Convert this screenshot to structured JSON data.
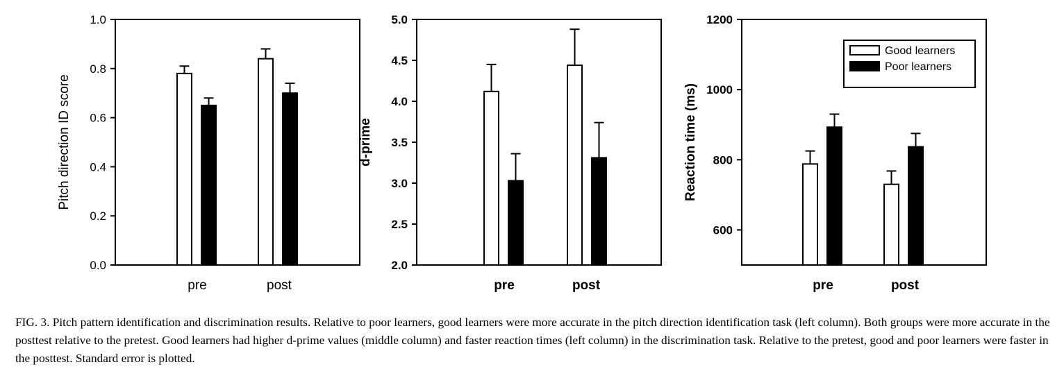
{
  "series_names": [
    "Good learners",
    "Poor learners"
  ],
  "chart_data": [
    {
      "type": "bar",
      "categories": [
        "pre",
        "post"
      ],
      "ylabel": "Pitch direction ID score",
      "ylim": [
        0.0,
        1.0
      ],
      "yticks": [
        "0.0",
        "0.2",
        "0.4",
        "0.6",
        "0.8",
        "1.0"
      ],
      "series": [
        {
          "name": "Good learners",
          "values": [
            0.78,
            0.84
          ],
          "errors": [
            0.03,
            0.04
          ]
        },
        {
          "name": "Poor learners",
          "values": [
            0.65,
            0.7
          ],
          "errors": [
            0.03,
            0.04
          ]
        }
      ]
    },
    {
      "type": "bar",
      "categories": [
        "pre",
        "post"
      ],
      "ylabel": "d-prime",
      "ylim": [
        2.0,
        5.0
      ],
      "yticks": [
        "2.0",
        "2.5",
        "3.0",
        "3.5",
        "4.0",
        "4.5",
        "5.0"
      ],
      "series": [
        {
          "name": "Good learners",
          "values": [
            4.12,
            4.44
          ],
          "errors": [
            0.33,
            0.44
          ]
        },
        {
          "name": "Poor learners",
          "values": [
            3.03,
            3.31
          ],
          "errors": [
            0.33,
            0.43
          ]
        }
      ]
    },
    {
      "type": "bar",
      "categories": [
        "pre",
        "post"
      ],
      "ylabel": "Reaction time (ms)",
      "ylim": [
        500,
        1200
      ],
      "yticks": [
        "600",
        "800",
        "1000",
        "1200"
      ],
      "legend_position": "top-right",
      "series": [
        {
          "name": "Good learners",
          "values": [
            788,
            730
          ],
          "errors": [
            37,
            38
          ]
        },
        {
          "name": "Poor learners",
          "values": [
            893,
            837
          ],
          "errors": [
            37,
            38
          ]
        }
      ]
    }
  ],
  "caption": "FIG. 3. Pitch pattern identification and discrimination results. Relative to poor learners, good learners were more accurate in the pitch direction identification task (left column). Both groups were more accurate in the posttest relative to the pretest. Good learners had higher d-prime values (middle column) and faster reaction times (left column) in the discrimination task. Relative to the pretest, good and poor learners were faster in the posttest. Standard error is plotted."
}
